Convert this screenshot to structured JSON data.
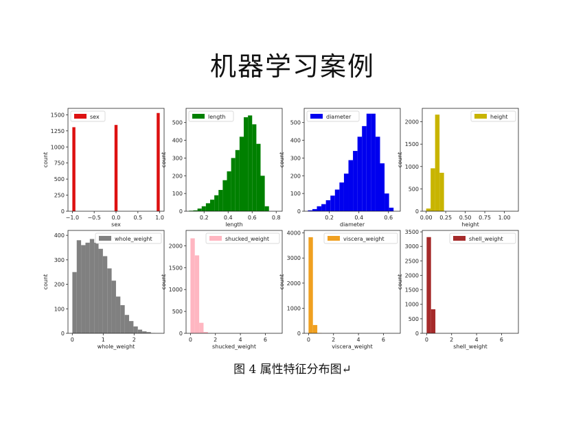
{
  "title": "机器学习案例",
  "caption": "图 4 属性特征分布图↵",
  "chart_data": [
    {
      "type": "bar",
      "xlabel": "sex",
      "ylabel": "count",
      "legend": "sex",
      "legend_pos": "top-left",
      "color": "#dd1111",
      "xlim": [
        -1.1,
        1.1
      ],
      "ylim": [
        0,
        1600
      ],
      "xticks": [
        -1.0,
        -0.5,
        0.0,
        0.5,
        1.0
      ],
      "xticklabels": [
        "−1.0",
        "−0.5",
        "0.0",
        "0.5",
        "1.0"
      ],
      "yticks": [
        0,
        250,
        500,
        750,
        1000,
        1250,
        1500
      ],
      "bins": [
        {
          "x0": -1.0,
          "x1": -0.93,
          "y": 1307
        },
        {
          "x0": -0.035,
          "x1": 0.035,
          "y": 1342
        },
        {
          "x0": 0.93,
          "x1": 1.0,
          "y": 1528
        }
      ]
    },
    {
      "type": "bar",
      "xlabel": "length",
      "ylabel": "count",
      "legend": "length",
      "legend_pos": "top-left",
      "color": "#008000",
      "xlim": [
        0.05,
        0.85
      ],
      "ylim": [
        0,
        580
      ],
      "xticks": [
        0.2,
        0.4,
        0.6,
        0.8
      ],
      "xticklabels": [
        "0.2",
        "0.4",
        "0.6",
        "0.8"
      ],
      "yticks": [
        0,
        100,
        200,
        300,
        400,
        500
      ],
      "bin_start": 0.075,
      "bin_width": 0.035,
      "counts": [
        3,
        5,
        15,
        28,
        45,
        65,
        90,
        120,
        175,
        225,
        300,
        345,
        420,
        530,
        540,
        490,
        380,
        200,
        28
      ]
    },
    {
      "type": "bar",
      "xlabel": "diameter",
      "ylabel": "count",
      "legend": "diameter",
      "legend_pos": "top-left",
      "color": "#0000ee",
      "xlim": [
        0.03,
        0.68
      ],
      "ylim": [
        0,
        580
      ],
      "xticks": [
        0.2,
        0.4,
        0.6
      ],
      "xticklabels": [
        "0.2",
        "0.4",
        "0.6"
      ],
      "yticks": [
        0,
        100,
        200,
        300,
        400,
        500
      ],
      "bin_start": 0.055,
      "bin_width": 0.0305,
      "counts": [
        5,
        12,
        28,
        40,
        62,
        88,
        122,
        162,
        212,
        288,
        340,
        420,
        480,
        550,
        550,
        420,
        270,
        100,
        20
      ]
    },
    {
      "type": "bar",
      "xlabel": "height",
      "ylabel": "count",
      "legend": "height",
      "legend_pos": "top-right",
      "color": "#c8b400",
      "xlim": [
        -0.05,
        1.18
      ],
      "ylim": [
        0,
        2300
      ],
      "xticks": [
        0.0,
        0.25,
        0.5,
        0.75,
        1.0
      ],
      "xticklabels": [
        "0.00",
        "0.25",
        "0.50",
        "0.75",
        "1.00"
      ],
      "yticks": [
        0,
        500,
        1000,
        1500,
        2000
      ],
      "bin_start": 0.0,
      "bin_width": 0.057,
      "counts": [
        60,
        960,
        2160,
        860,
        0,
        0,
        0,
        0,
        0,
        0,
        0,
        0,
        0,
        0,
        0,
        0,
        0,
        0,
        0,
        2
      ]
    },
    {
      "type": "bar",
      "xlabel": "whole_weight",
      "ylabel": "count",
      "legend": "whole_weight",
      "legend_pos": "top-right",
      "color": "#808080",
      "xlim": [
        -0.14,
        2.97
      ],
      "ylim": [
        0,
        420
      ],
      "xticks": [
        0,
        1,
        2
      ],
      "xticklabels": [
        "0",
        "1",
        "2"
      ],
      "yticks": [
        0,
        100,
        200,
        300,
        400
      ],
      "bin_start": 0.002,
      "bin_width": 0.1412,
      "counts": [
        250,
        380,
        360,
        370,
        385,
        370,
        345,
        315,
        265,
        215,
        150,
        115,
        75,
        50,
        28,
        15,
        8,
        5,
        1,
        0
      ]
    },
    {
      "type": "bar",
      "xlabel": "shucked_weight",
      "ylabel": "count",
      "legend": "shucked_weight",
      "legend_pos": "top-right",
      "color": "#ffb6c1",
      "xlim": [
        -0.35,
        7.35
      ],
      "ylim": [
        0,
        2350
      ],
      "xticks": [
        0,
        2,
        4,
        6
      ],
      "xticklabels": [
        "0",
        "2",
        "4",
        "6"
      ],
      "yticks": [
        0,
        500,
        1000,
        1500,
        2000
      ],
      "bin_start": 0.0,
      "bin_width": 0.35,
      "counts": [
        2170,
        1780,
        240,
        30,
        3
      ]
    },
    {
      "type": "bar",
      "xlabel": "viscera_weight",
      "ylabel": "count",
      "legend": "viscera_weight",
      "legend_pos": "top-right",
      "color": "#f0a020",
      "xlim": [
        -0.35,
        7.35
      ],
      "ylim": [
        0,
        4100
      ],
      "xticks": [
        0,
        2,
        4,
        6
      ],
      "xticklabels": [
        "0",
        "2",
        "4",
        "6"
      ],
      "yticks": [
        0,
        1000,
        2000,
        3000,
        4000
      ],
      "bin_start": 0.0,
      "bin_width": 0.35,
      "counts": [
        3830,
        330,
        12
      ]
    },
    {
      "type": "bar",
      "xlabel": "shell_weight",
      "ylabel": "count",
      "legend": "shell_weight",
      "legend_pos": "top-right",
      "color": "#a52a2a",
      "xlim": [
        -0.35,
        7.35
      ],
      "ylim": [
        0,
        3550
      ],
      "xticks": [
        0,
        2,
        4,
        6
      ],
      "xticklabels": [
        "0",
        "2",
        "4",
        "6"
      ],
      "yticks": [
        0,
        500,
        1000,
        1500,
        2000,
        2500,
        3000,
        3500
      ],
      "bin_start": 0.0,
      "bin_width": 0.35,
      "counts": [
        3320,
        830,
        0,
        0,
        0,
        0,
        0,
        0,
        0,
        0,
        0,
        0,
        0,
        0,
        0,
        0,
        0,
        0,
        0,
        2
      ]
    }
  ]
}
